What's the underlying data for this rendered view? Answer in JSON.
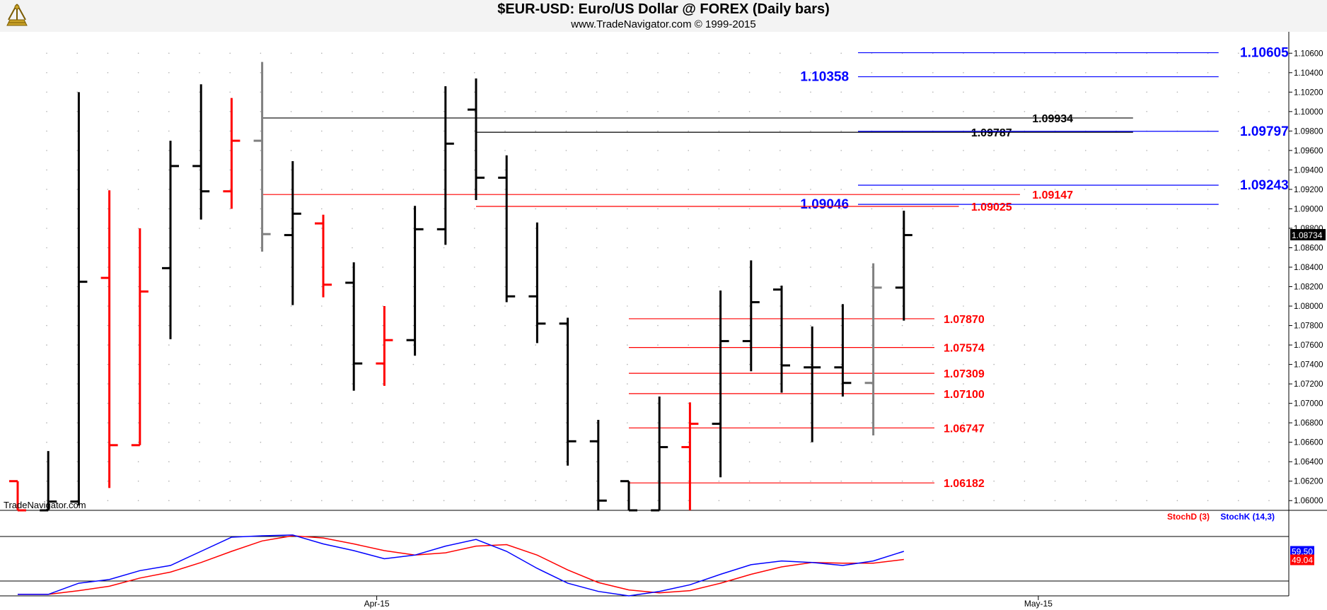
{
  "header": {
    "title": "$EUR-USD:  Euro/US Dollar @ FOREX  (Daily bars)",
    "subtitle": "www.TradeNavigator.com © 1999-2015"
  },
  "watermark": "TradeNavigator.com",
  "icons": {
    "logo": "sextant-logo-icon"
  },
  "colors": {
    "up": "#000000",
    "down": "#ff0000",
    "neutral": "#808080",
    "blue": "#0000ff",
    "red": "#ff0000"
  },
  "chart_data": {
    "type": "ohlc",
    "ylim": [
      1.059,
      1.1082
    ],
    "y_ticks": [
      "1.10600",
      "1.10400",
      "1.10200",
      "1.10000",
      "1.09800",
      "1.09600",
      "1.09400",
      "1.09200",
      "1.09000",
      "1.08800",
      "1.08600",
      "1.08400",
      "1.08200",
      "1.08000",
      "1.07800",
      "1.07600",
      "1.07400",
      "1.07200",
      "1.07000",
      "1.06800",
      "1.06600",
      "1.06400",
      "1.06200",
      "1.06000"
    ],
    "x_labels": [
      {
        "label": "Apr-15",
        "index": 11.75
      },
      {
        "label": "May-15",
        "index": 33.4
      }
    ],
    "last_price": "1.08734",
    "bars": [
      {
        "o": 1.062,
        "h": 1.062,
        "l": 1.059,
        "c": 1.059,
        "color": "red"
      },
      {
        "o": 1.059,
        "h": 1.0651,
        "l": 1.059,
        "c": 1.0599,
        "color": "black"
      },
      {
        "o": 1.0599,
        "h": 1.102,
        "l": 1.0595,
        "c": 1.0825,
        "color": "black"
      },
      {
        "o": 1.0829,
        "h": 1.0919,
        "l": 1.0613,
        "c": 1.0657,
        "color": "red"
      },
      {
        "o": 1.0657,
        "h": 1.088,
        "l": 1.0657,
        "c": 1.0815,
        "color": "red"
      },
      {
        "o": 1.0839,
        "h": 1.097,
        "l": 1.0766,
        "c": 1.0944,
        "color": "black"
      },
      {
        "o": 1.0944,
        "h": 1.1028,
        "l": 1.0889,
        "c": 1.0918,
        "color": "black"
      },
      {
        "o": 1.0918,
        "h": 1.1014,
        "l": 1.09,
        "c": 1.097,
        "color": "red"
      },
      {
        "o": 1.097,
        "h": 1.1051,
        "l": 1.0856,
        "c": 1.0874,
        "color": "gray"
      },
      {
        "o": 1.0873,
        "h": 1.0949,
        "l": 1.0801,
        "c": 1.0895,
        "color": "black"
      },
      {
        "o": 1.0885,
        "h": 1.0894,
        "l": 1.0809,
        "c": 1.0822,
        "color": "red"
      },
      {
        "o": 1.0824,
        "h": 1.0845,
        "l": 1.0713,
        "c": 1.0741,
        "color": "black"
      },
      {
        "o": 1.0741,
        "h": 1.08,
        "l": 1.0718,
        "c": 1.0765,
        "color": "red"
      },
      {
        "o": 1.0765,
        "h": 1.0903,
        "l": 1.0749,
        "c": 1.0879,
        "color": "black"
      },
      {
        "o": 1.0879,
        "h": 1.1026,
        "l": 1.0863,
        "c": 1.0967,
        "color": "black"
      },
      {
        "o": 1.1002,
        "h": 1.1034,
        "l": 1.0909,
        "c": 1.0932,
        "color": "black"
      },
      {
        "o": 1.0932,
        "h": 1.0955,
        "l": 1.0804,
        "c": 1.081,
        "color": "black"
      },
      {
        "o": 1.081,
        "h": 1.0886,
        "l": 1.0762,
        "c": 1.0782,
        "color": "black"
      },
      {
        "o": 1.0782,
        "h": 1.0788,
        "l": 1.0636,
        "c": 1.0661,
        "color": "black"
      },
      {
        "o": 1.0661,
        "h": 1.0683,
        "l": 1.059,
        "c": 1.06,
        "color": "black"
      },
      {
        "o": 1.062,
        "h": 1.062,
        "l": 1.059,
        "c": 1.059,
        "color": "black"
      },
      {
        "o": 1.059,
        "h": 1.0707,
        "l": 1.059,
        "c": 1.0655,
        "color": "black"
      },
      {
        "o": 1.0655,
        "h": 1.0701,
        "l": 1.059,
        "c": 1.0679,
        "color": "red"
      },
      {
        "o": 1.0679,
        "h": 1.0816,
        "l": 1.0624,
        "c": 1.0764,
        "color": "black"
      },
      {
        "o": 1.0764,
        "h": 1.0847,
        "l": 1.0733,
        "c": 1.0804,
        "color": "black"
      },
      {
        "o": 1.0817,
        "h": 1.0821,
        "l": 1.0711,
        "c": 1.0739,
        "color": "black"
      },
      {
        "o": 1.0737,
        "h": 1.0779,
        "l": 1.066,
        "c": 1.0737,
        "color": "black"
      },
      {
        "o": 1.0737,
        "h": 1.0802,
        "l": 1.0707,
        "c": 1.0721,
        "color": "black"
      },
      {
        "o": 1.0721,
        "h": 1.0844,
        "l": 1.0667,
        "c": 1.0819,
        "color": "gray"
      },
      {
        "o": 1.0819,
        "h": 1.0898,
        "l": 1.0785,
        "c": 1.0873,
        "color": "black"
      }
    ],
    "levels": [
      {
        "value": 1.10605,
        "label": "1.10605",
        "color": "blue",
        "from": 27.5,
        "to": 39.3,
        "label_pos": "right",
        "label_at": 40.0
      },
      {
        "value": 1.10358,
        "label": "1.10358",
        "color": "blue",
        "from": 27.5,
        "to": 39.3,
        "label_pos": "left",
        "label_at": 27.2
      },
      {
        "value": 1.09934,
        "label": "1.09934",
        "color": "black",
        "from": 8.0,
        "to": 36.5,
        "label_pos": "right",
        "label_at": 33.2
      },
      {
        "value": 1.09787,
        "label": "1.09787",
        "color": "black",
        "from": 15.0,
        "to": 36.5,
        "label_pos": "right",
        "label_at": 31.2
      },
      {
        "value": 1.09797,
        "label": "1.09797",
        "color": "blue",
        "from": 27.5,
        "to": 39.3,
        "label_pos": "right",
        "label_at": 40.0
      },
      {
        "value": 1.09243,
        "label": "1.09243",
        "color": "blue",
        "from": 27.5,
        "to": 39.3,
        "label_pos": "right",
        "label_at": 40.0
      },
      {
        "value": 1.09147,
        "label": "1.09147",
        "color": "red",
        "from": 8.0,
        "to": 32.8,
        "label_pos": "right",
        "label_at": 33.2
      },
      {
        "value": 1.09046,
        "label": "1.09046",
        "color": "blue",
        "from": 27.5,
        "to": 39.3,
        "label_pos": "left",
        "label_at": 27.2
      },
      {
        "value": 1.09025,
        "label": "1.09025",
        "color": "red",
        "from": 15.0,
        "to": 30.8,
        "label_pos": "right",
        "label_at": 31.2
      },
      {
        "value": 1.0787,
        "label": "1.07870",
        "color": "red",
        "from": 20.0,
        "to": 30.0,
        "label_pos": "right",
        "label_at": 30.3
      },
      {
        "value": 1.07574,
        "label": "1.07574",
        "color": "red",
        "from": 20.0,
        "to": 30.0,
        "label_pos": "right",
        "label_at": 30.3
      },
      {
        "value": 1.07309,
        "label": "1.07309",
        "color": "red",
        "from": 20.0,
        "to": 30.0,
        "label_pos": "right",
        "label_at": 30.3
      },
      {
        "value": 1.071,
        "label": "1.07100",
        "color": "red",
        "from": 20.0,
        "to": 30.0,
        "label_pos": "right",
        "label_at": 30.3
      },
      {
        "value": 1.06747,
        "label": "1.06747",
        "color": "red",
        "from": 20.0,
        "to": 30.0,
        "label_pos": "right",
        "label_at": 30.3
      },
      {
        "value": 1.06182,
        "label": "1.06182",
        "color": "red",
        "from": 20.0,
        "to": 30.0,
        "label_pos": "right",
        "label_at": 30.3
      }
    ],
    "stochastic": {
      "legend": [
        {
          "name": "StochD (3)",
          "color": "red"
        },
        {
          "name": "StochK (14,3)",
          "color": "blue"
        }
      ],
      "ylim": [
        0,
        100
      ],
      "bands": [
        80,
        20
      ],
      "k": [
        2,
        2,
        17,
        22,
        34,
        41,
        60,
        79,
        81,
        82,
        70,
        61,
        50,
        55,
        67,
        76,
        60,
        37,
        17,
        6,
        0,
        6,
        15,
        29,
        42,
        47,
        45,
        41,
        47,
        60
      ],
      "d": [
        2,
        2,
        7,
        13,
        24,
        32,
        45,
        60,
        74,
        81,
        78,
        70,
        61,
        55,
        58,
        67,
        69,
        55,
        35,
        18,
        8,
        4,
        7,
        17,
        29,
        39,
        45,
        44,
        44,
        49
      ],
      "k_last": "59.50",
      "d_last": "49.04"
    }
  }
}
